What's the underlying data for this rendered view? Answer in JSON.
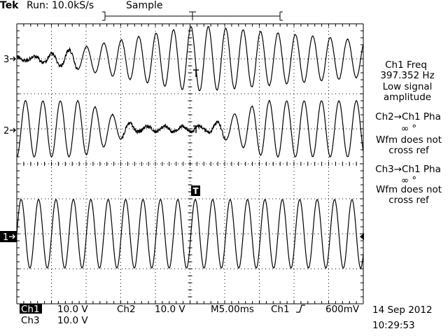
{
  "header": {
    "brand": "Tek",
    "run_status": "Run: 10.0kS/s",
    "acq_mode": "Sample"
  },
  "channels": {
    "ch3_marker": "3",
    "ch2_marker": "2",
    "ch1_marker": "1"
  },
  "measurements": {
    "m1": {
      "title": "Ch1 Freq",
      "value": "397.352 Hz",
      "note1": "Low signal",
      "note2": "amplitude"
    },
    "m2": {
      "title": "Ch2→Ch1 Pha",
      "value": "∞ °",
      "note1": "Wfm does not",
      "note2": "cross ref"
    },
    "m3": {
      "title": "Ch3→Ch1 Pha",
      "value": "∞ °",
      "note1": "Wfm does not",
      "note2": "cross ref"
    }
  },
  "status_bar": {
    "ch1_label": "Ch1",
    "ch1_scale": "10.0 V",
    "ch2_label": "Ch2",
    "ch2_scale": "10.0 V",
    "timebase": "M5.00ms",
    "trigger_source": "Ch1",
    "trigger_level": "600mV",
    "ch3_label": "Ch3",
    "ch3_scale": "10.0 V",
    "date": "14 Sep 2012",
    "time": "10:29:53"
  },
  "trigger_marker": "T",
  "waveforms": {
    "ch1": {
      "color": "#000000",
      "cycles_on_screen": 19.9
    },
    "ch2": {
      "color": "#000000",
      "cycles_on_screen": 19.9
    },
    "ch3": {
      "color": "#000000",
      "cycles_on_screen": 19.9
    }
  }
}
